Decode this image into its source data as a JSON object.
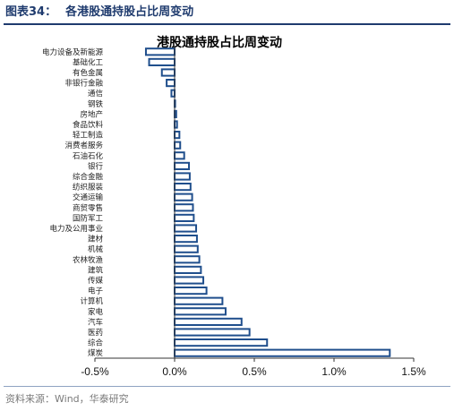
{
  "header": {
    "figure_number": "图表34：",
    "figure_title": "各港股通持股占比周变动"
  },
  "footer": {
    "source": "资料来源：Wind，华泰研究"
  },
  "colors": {
    "bar_fill": "#ffffff",
    "bar_stroke": "#1f4e8c",
    "header": "#1f3b6e"
  },
  "chart_data": {
    "type": "bar",
    "orientation": "horizontal",
    "title": "港股通持股占比周变动",
    "xlim": [
      -0.5,
      1.5
    ],
    "xticks": [
      -0.5,
      0.0,
      0.5,
      1.0,
      1.5
    ],
    "xtick_labels": [
      "-0.5%",
      "0.0%",
      "0.5%",
      "1.0%",
      "1.5%"
    ],
    "unit": "%",
    "grid": false,
    "legend": "none",
    "categories": [
      "电力设备及新能源",
      "基础化工",
      "有色金属",
      "非银行金融",
      "通信",
      "钢铁",
      "房地产",
      "食品饮料",
      "轻工制造",
      "消费者服务",
      "石油石化",
      "银行",
      "综合金融",
      "纺织服装",
      "交通运输",
      "商贸零售",
      "国防军工",
      "电力及公用事业",
      "建材",
      "机械",
      "农林牧渔",
      "建筑",
      "传媒",
      "电子",
      "计算机",
      "家电",
      "汽车",
      "医药",
      "综合",
      "煤炭"
    ],
    "values": [
      -0.18,
      -0.16,
      -0.08,
      -0.05,
      -0.02,
      0.0,
      0.01,
      0.015,
      0.03,
      0.035,
      0.06,
      0.09,
      0.095,
      0.1,
      0.11,
      0.115,
      0.12,
      0.135,
      0.14,
      0.145,
      0.155,
      0.165,
      0.18,
      0.2,
      0.3,
      0.32,
      0.42,
      0.47,
      0.58,
      1.35
    ]
  }
}
